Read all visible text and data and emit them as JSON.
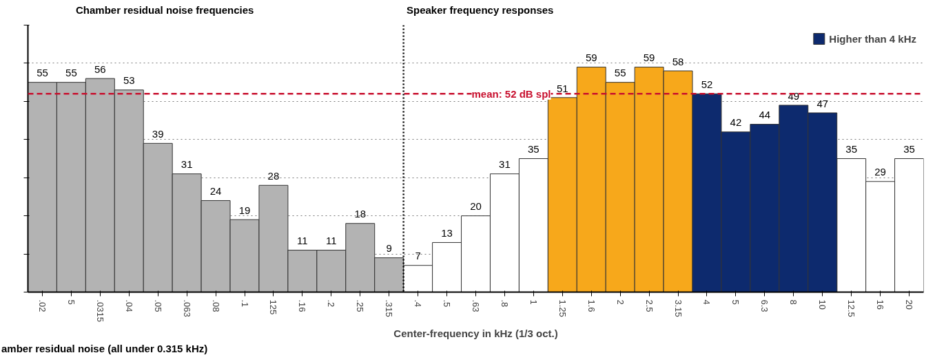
{
  "chart_data": {
    "type": "bar",
    "xlabel": "Center-frequency in kHz (1/3 oct.)",
    "annotations": [
      "Chamber residual noise frequencies",
      "Speaker frequency responses",
      "amber residual noise (all under 0.315 kHz)"
    ],
    "categories": [
      ".02",
      "5",
      ".0315",
      ".04",
      ".05",
      ".063",
      ".08",
      ".1",
      "125",
      ".16",
      ".2",
      ".25",
      ".315",
      ".4",
      ".5",
      ".63",
      ".8",
      "1",
      "1.25",
      "1.6",
      "2",
      "2.5",
      "3.15",
      "4",
      "5",
      "6.3",
      "8",
      "10",
      "12.5",
      "16",
      "20"
    ],
    "series": [
      {
        "color": "#b3b3b3",
        "values": [
          55,
          55,
          56,
          53,
          39,
          31,
          24,
          19,
          28,
          11,
          11,
          18,
          9,
          null,
          null,
          null,
          null,
          null,
          null,
          null,
          null,
          null,
          null,
          null,
          null,
          null,
          null,
          null,
          null,
          null,
          null
        ]
      },
      {
        "color": "#ffffff",
        "values": [
          null,
          null,
          null,
          null,
          null,
          null,
          null,
          null,
          null,
          null,
          null,
          null,
          null,
          7,
          13,
          20,
          31,
          35,
          null,
          null,
          null,
          null,
          null,
          null,
          null,
          null,
          null,
          null,
          35,
          29,
          35
        ]
      },
      {
        "color": "#f7a81b",
        "values": [
          null,
          null,
          null,
          null,
          null,
          null,
          null,
          null,
          null,
          null,
          null,
          null,
          null,
          null,
          null,
          null,
          null,
          null,
          51,
          59,
          55,
          59,
          58,
          null,
          null,
          null,
          null,
          null,
          null,
          null,
          null
        ]
      },
      {
        "name": "Higher than 4 kHz",
        "color": "#0d2a6e",
        "values": [
          null,
          null,
          null,
          null,
          null,
          null,
          null,
          null,
          null,
          null,
          null,
          null,
          null,
          null,
          null,
          null,
          null,
          null,
          null,
          null,
          null,
          null,
          null,
          52,
          42,
          44,
          49,
          47,
          null,
          null,
          null
        ]
      }
    ],
    "ylim": [
      0,
      70
    ],
    "yticks": [
      {
        "value": 0,
        "label": null
      },
      {
        "value": 10,
        "label": null
      },
      {
        "value": 20,
        "label": null
      },
      {
        "value": 30,
        "label": null
      },
      {
        "value": 40,
        "label": null
      },
      {
        "value": 50,
        "label": null
      },
      {
        "value": 60,
        "label": null
      },
      {
        "value": 70,
        "label": null
      }
    ],
    "ref_lines": [
      {
        "axis": "y",
        "value": 52,
        "label": "mean: 52 dB spl",
        "color": "#c8102e",
        "line_style": "dashed"
      },
      {
        "axis": "x",
        "value": ".4",
        "color": "#000000",
        "line_style": "dotted"
      }
    ],
    "data_labels": true,
    "grid": "y",
    "legend": "top right"
  }
}
